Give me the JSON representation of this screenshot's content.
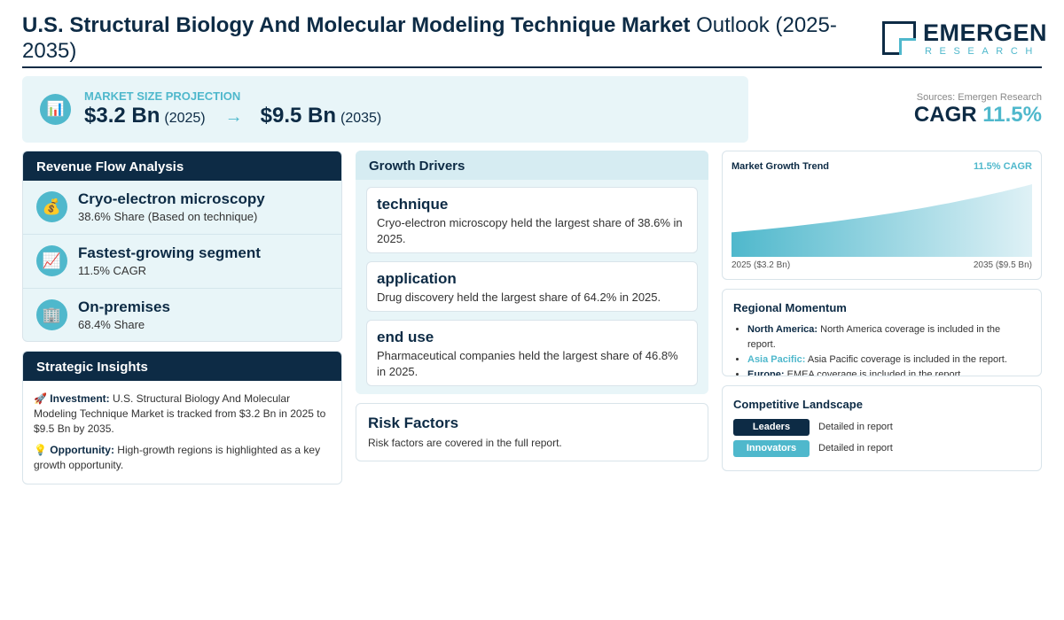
{
  "header": {
    "title_bold": "U.S. Structural Biology And Molecular Modeling Technique Market",
    "title_light": "Outlook (2025-2035)",
    "logo_main": "EMERGEN",
    "logo_sub": "RESEARCH"
  },
  "projection": {
    "icon": "bar-chart-icon",
    "label": "MARKET SIZE PROJECTION",
    "start_value": "$3.2 Bn",
    "start_year": "(2025)",
    "arrow": "→",
    "end_value": "$9.5 Bn",
    "end_year": "(2035)"
  },
  "summary": {
    "sources": "Sources: Emergen Research",
    "cagr_label": "CAGR",
    "cagr_value": "11.5%"
  },
  "revenue_flow": {
    "title": "Revenue Flow Analysis",
    "items": [
      {
        "icon": "money-bag-icon",
        "title": "Cryo-electron microscopy",
        "subtitle": "38.6% Share (Based on technique)"
      },
      {
        "icon": "chart-up-icon",
        "title": "Fastest-growing segment",
        "subtitle": "11.5% CAGR"
      },
      {
        "icon": "building-icon",
        "title": "On-premises",
        "subtitle": "68.4% Share"
      }
    ]
  },
  "strategic_insights": {
    "title": "Strategic Insights",
    "investment_label": "Investment:",
    "investment_text": "U.S. Structural Biology And Molecular Modeling Technique Market is tracked from $3.2 Bn in 2025 to $9.5 Bn by 2035.",
    "opportunity_label": "Opportunity:",
    "opportunity_text": "High-growth regions is highlighted as a key growth opportunity."
  },
  "growth_drivers": {
    "title": "Growth Drivers",
    "items": [
      {
        "title": "technique",
        "text": "Cryo-electron microscopy held the largest share of 38.6% in 2025."
      },
      {
        "title": "application",
        "text": "Drug discovery held the largest share of 64.2% in 2025."
      },
      {
        "title": "end use",
        "text": "Pharmaceutical companies held the largest share of 46.8% in 2025."
      }
    ]
  },
  "risk_factors": {
    "title": "Risk Factors",
    "text": "Risk factors are covered in the full report."
  },
  "chart_data": {
    "type": "area",
    "title": "Market Growth Trend",
    "annotation": "11.5% CAGR",
    "x": [
      2025,
      2035
    ],
    "start_label": "2025 ($3.2 Bn)",
    "end_label": "2035 ($9.5 Bn)",
    "values": [
      3.2,
      9.5
    ],
    "colors": {
      "fill_start": "#4fb8cc",
      "fill_end": "#dff1f6"
    }
  },
  "regional_momentum": {
    "title": "Regional Momentum",
    "items": [
      {
        "region": "North America:",
        "text": "North America coverage is included in the report."
      },
      {
        "region": "Asia Pacific:",
        "text": "Asia Pacific coverage is included in the report."
      },
      {
        "region": "Europe:",
        "text": "EMEA coverage is included in the report."
      }
    ]
  },
  "competitive_landscape": {
    "title": "Competitive Landscape",
    "rows": [
      {
        "badge": "Leaders",
        "text": "Detailed in report"
      },
      {
        "badge": "Innovators",
        "text": "Detailed in report"
      }
    ]
  },
  "colors": {
    "navy": "#0d2b45",
    "teal": "#4fb8cc",
    "light_panel": "#e8f5f8"
  }
}
